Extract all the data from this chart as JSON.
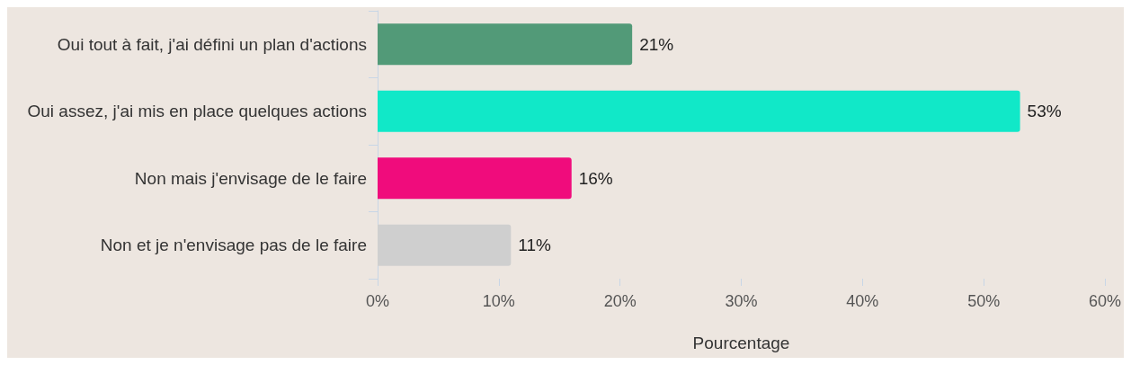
{
  "chart_data": {
    "type": "bar",
    "orientation": "horizontal",
    "xlabel": "Pourcentage",
    "categories": [
      "Oui tout à fait, j'ai défini un plan d'actions",
      "Oui assez, j'ai mis en place quelques actions",
      "Non mais j'envisage de le faire",
      "Non et je n'envisage pas de le faire"
    ],
    "values": [
      21,
      53,
      16,
      11
    ],
    "value_labels": [
      "21%",
      "53%",
      "16%",
      "11%"
    ],
    "colors": [
      "#529a78",
      "#11e8c8",
      "#f00c7c",
      "#cfcfcf"
    ],
    "xlim": [
      0,
      60
    ],
    "xticks": [
      {
        "value": 0,
        "label": "0%"
      },
      {
        "value": 10,
        "label": "10%"
      },
      {
        "value": 20,
        "label": "20%"
      },
      {
        "value": 30,
        "label": "30%"
      },
      {
        "value": 40,
        "label": "40%"
      },
      {
        "value": 50,
        "label": "50%"
      },
      {
        "value": 60,
        "label": "60%"
      }
    ],
    "grid": false
  }
}
